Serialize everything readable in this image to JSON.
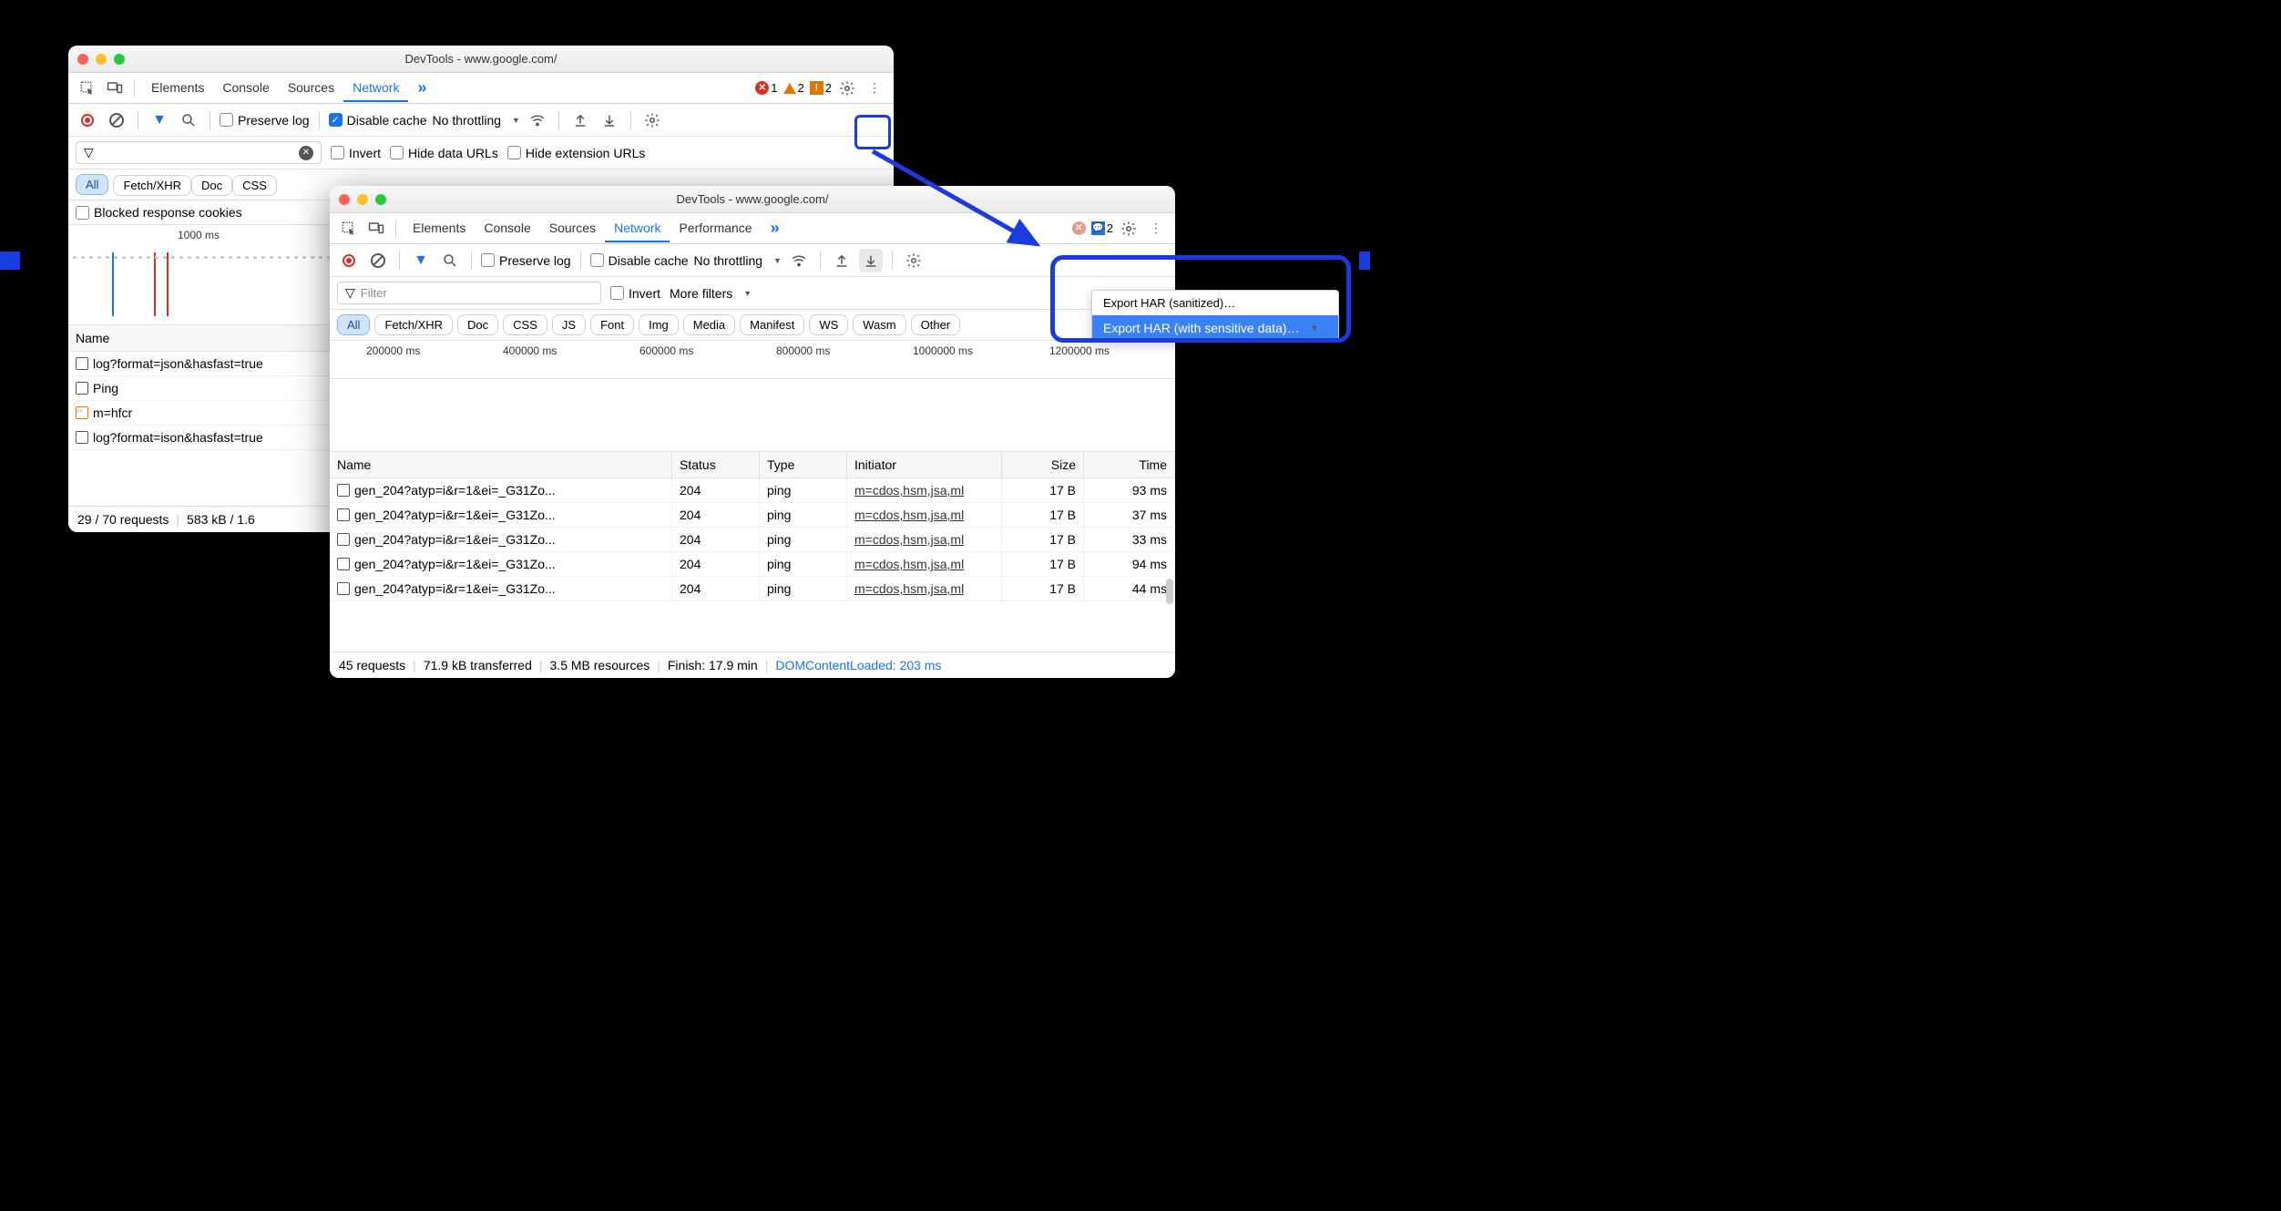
{
  "colors": {
    "accent": "#1a73e8",
    "highlight": "#1a3be0",
    "error": "#d93025",
    "warn": "#e37400",
    "pill_on_bg": "#d0e3ff",
    "background": "#000000",
    "window_bg": "#ffffff"
  },
  "win1": {
    "title": "DevTools - www.google.com/",
    "tabs": [
      "Elements",
      "Console",
      "Sources",
      "Network"
    ],
    "active_tab": "Network",
    "badges": {
      "errors": "1",
      "warnings": "2",
      "issues": "2"
    },
    "toolbar": {
      "preserve_log": "Preserve log",
      "disable_cache": "Disable cache",
      "throttling": "No throttling"
    },
    "filter": {
      "placeholder": "",
      "invert": "Invert",
      "hide_data": "Hide data URLs",
      "hide_ext": "Hide extension URLs"
    },
    "pills": {
      "all": "All",
      "others": [
        "Fetch/XHR",
        "Doc",
        "CSS"
      ]
    },
    "extra_row": {
      "blocked": "Blocked response cookies"
    },
    "timeline": {
      "label": "1000 ms"
    },
    "table": {
      "header": "Name",
      "rows": [
        "log?format=json&hasfast=true",
        "Ping",
        "m=hfcr",
        "log?format=ison&hasfast=true"
      ]
    },
    "status": {
      "requests": "29 / 70 requests",
      "transferred": "583 kB / 1.6"
    }
  },
  "win2": {
    "title": "DevTools - www.google.com/",
    "tabs": [
      "Elements",
      "Console",
      "Sources",
      "Network",
      "Performance"
    ],
    "active_tab": "Network",
    "badges": {
      "issues": "2"
    },
    "toolbar": {
      "preserve_log": "Preserve log",
      "disable_cache": "Disable cache",
      "throttling": "No throttling"
    },
    "filter": {
      "placeholder": "Filter",
      "invert": "Invert",
      "more": "More filters"
    },
    "pills": {
      "all": "All",
      "others": [
        "Fetch/XHR",
        "Doc",
        "CSS",
        "JS",
        "Font",
        "Img",
        "Media",
        "Manifest",
        "WS",
        "Wasm",
        "Other"
      ]
    },
    "timeline": {
      "labels": [
        "200000 ms",
        "400000 ms",
        "600000 ms",
        "800000 ms",
        "1000000 ms",
        "1200000 ms"
      ]
    },
    "table": {
      "columns": [
        "Name",
        "Status",
        "Type",
        "Initiator",
        "Size",
        "Time"
      ],
      "rows": [
        {
          "name": "gen_204?atyp=i&r=1&ei=_G31Zo...",
          "status": "204",
          "type": "ping",
          "initiator": "m=cdos,hsm,jsa,ml",
          "size": "17 B",
          "time": "93 ms"
        },
        {
          "name": "gen_204?atyp=i&r=1&ei=_G31Zo...",
          "status": "204",
          "type": "ping",
          "initiator": "m=cdos,hsm,jsa,ml",
          "size": "17 B",
          "time": "37 ms"
        },
        {
          "name": "gen_204?atyp=i&r=1&ei=_G31Zo...",
          "status": "204",
          "type": "ping",
          "initiator": "m=cdos,hsm,jsa,ml",
          "size": "17 B",
          "time": "33 ms"
        },
        {
          "name": "gen_204?atyp=i&r=1&ei=_G31Zo...",
          "status": "204",
          "type": "ping",
          "initiator": "m=cdos,hsm,jsa,ml",
          "size": "17 B",
          "time": "94 ms"
        },
        {
          "name": "gen_204?atyp=i&r=1&ei=_G31Zo...",
          "status": "204",
          "type": "ping",
          "initiator": "m=cdos,hsm,jsa,ml",
          "size": "17 B",
          "time": "44 ms"
        }
      ]
    },
    "status": {
      "requests": "45 requests",
      "transferred": "71.9 kB transferred",
      "resources": "3.5 MB resources",
      "finish": "Finish: 17.9 min",
      "dcl": "DOMContentLoaded: 203 ms"
    },
    "dropdown": {
      "item1": "Export HAR (sanitized)…",
      "item2": "Export HAR (with sensitive data)…"
    }
  }
}
